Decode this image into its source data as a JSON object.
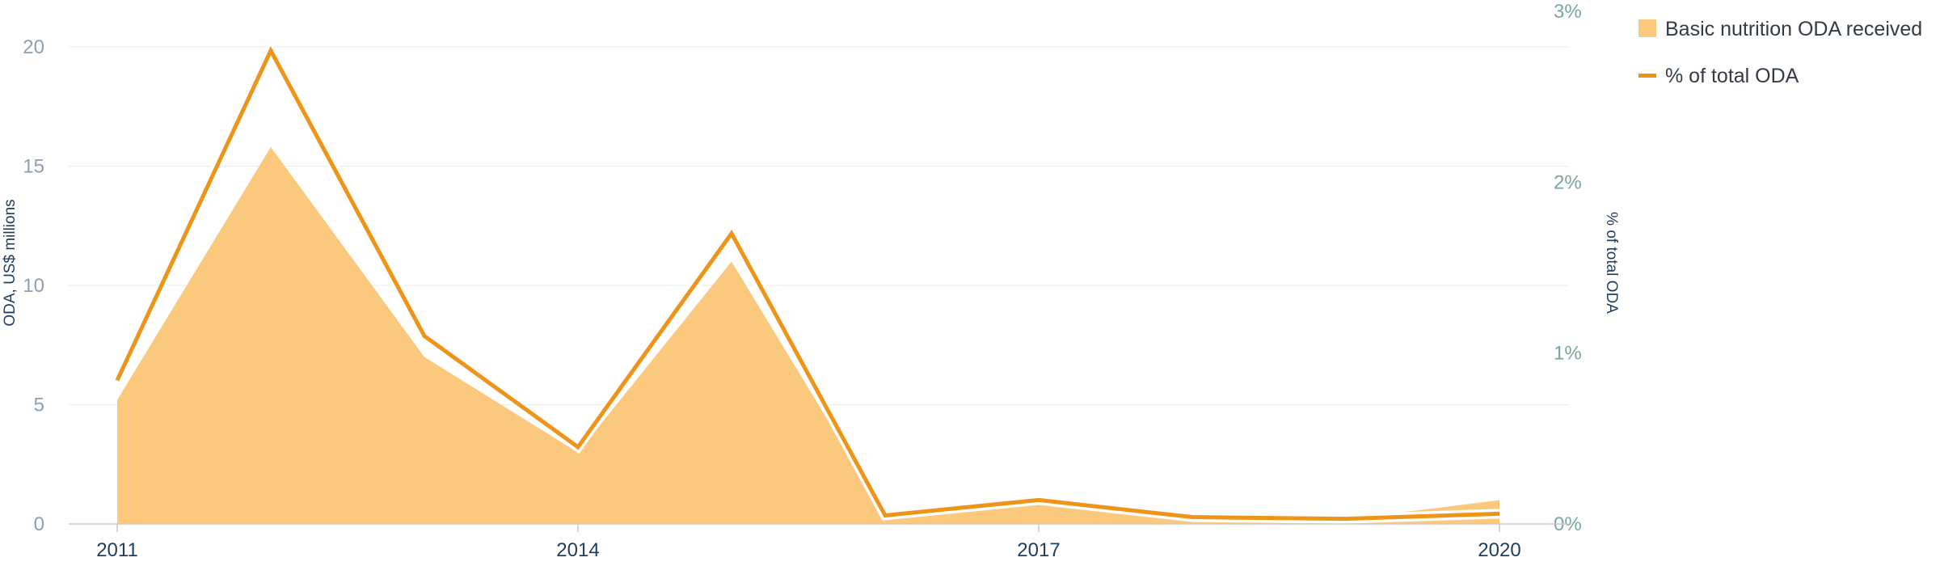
{
  "chart_data": {
    "type": "area+line",
    "x": [
      2011,
      2012,
      2013,
      2014,
      2015,
      2016,
      2017,
      2018,
      2019,
      2020
    ],
    "x_tick_labels": [
      "2011",
      "2014",
      "2017",
      "2020"
    ],
    "x_tick_values": [
      2011,
      2014,
      2017,
      2020
    ],
    "series": [
      {
        "name": "Basic nutrition ODA received",
        "type": "area",
        "axis": "left",
        "color": "#fbc97e",
        "values": [
          5.2,
          15.8,
          7.0,
          3.0,
          11.0,
          0.4,
          0.8,
          0.2,
          0.2,
          1.0
        ]
      },
      {
        "name": "% of total ODA",
        "type": "line",
        "axis": "right",
        "color": "#ee9418",
        "values": [
          0.84,
          2.77,
          1.1,
          0.45,
          1.7,
          0.05,
          0.14,
          0.04,
          0.03,
          0.06
        ]
      }
    ],
    "ylabel": "ODA, US$ millions",
    "ylim": [
      0,
      20
    ],
    "y_ticks": [
      "0",
      "5",
      "10",
      "15",
      "20"
    ],
    "y2label": "% of total ODA",
    "y2lim": [
      0,
      3
    ],
    "y2_ticks": [
      "0%",
      "1%",
      "2%",
      "3%"
    ],
    "grid": true,
    "legend_position": "top-right"
  }
}
